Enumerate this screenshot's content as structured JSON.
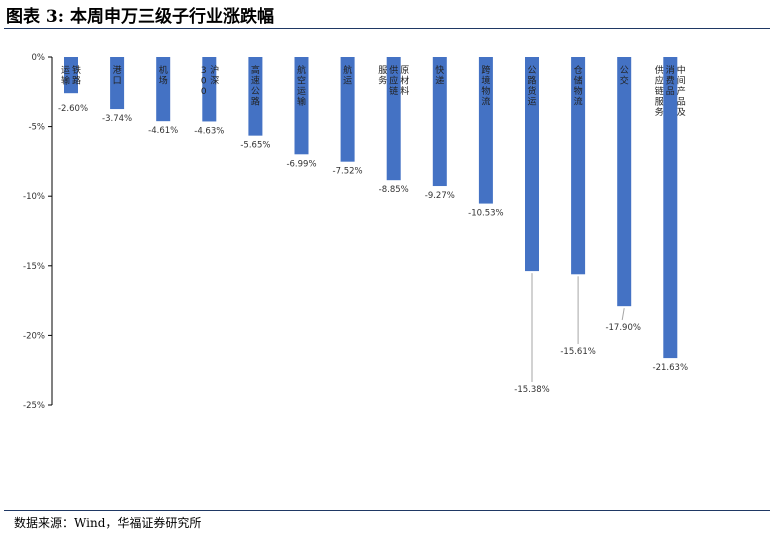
{
  "figure": {
    "title": "图表 3: 本周申万三级子行业涨跌幅",
    "source": "数据来源：Wind，华福证券研究所"
  },
  "colors": {
    "bar": "#4472c4",
    "axis": "#000000",
    "leader": "#a6a6a6",
    "rule": "#1f3864"
  },
  "chart_data": {
    "type": "bar",
    "title": "",
    "xlabel": "",
    "ylabel": "",
    "ylim": [
      -25,
      0
    ],
    "yticks": [
      0,
      -5,
      -10,
      -15,
      -20,
      -25
    ],
    "ytick_labels": [
      "0%",
      "-5%",
      "-10%",
      "-15%",
      "-20%",
      "-25%"
    ],
    "grid": false,
    "legend": "none",
    "categories": [
      "铁路运输",
      "港口",
      "机场",
      "沪深300",
      "高速公路",
      "航空运输",
      "航运",
      "原材料供应链服务",
      "快递",
      "跨境物流",
      "公路货运",
      "仓储物流",
      "公交",
      "中间产品及消费品供应链服务"
    ],
    "category_lines": [
      [
        "铁路",
        "运输"
      ],
      [
        "港口"
      ],
      [
        "机场"
      ],
      [
        "沪深",
        "300"
      ],
      [
        "高速公路"
      ],
      [
        "航空运输"
      ],
      [
        "航运"
      ],
      [
        "原材料",
        "供应链",
        "服务"
      ],
      [
        "快递"
      ],
      [
        "跨境物流"
      ],
      [
        "公路货运"
      ],
      [
        "仓储物流"
      ],
      [
        "公交"
      ],
      [
        "中间产品及",
        "消费品",
        "供应链服务"
      ]
    ],
    "values": [
      -2.6,
      -3.74,
      -4.61,
      -4.63,
      -5.65,
      -6.99,
      -7.52,
      -8.85,
      -9.27,
      -10.53,
      -15.38,
      -15.61,
      -17.9,
      -21.63
    ],
    "data_labels": [
      "-2.60%",
      "-3.74%",
      "-4.61%",
      "-4.63%",
      "-5.65%",
      "-6.99%",
      "-7.52%",
      "-8.85%",
      "-9.27%",
      "-10.53%",
      "-15.38%",
      "-15.61%",
      "-17.90%",
      "-21.63%"
    ]
  }
}
